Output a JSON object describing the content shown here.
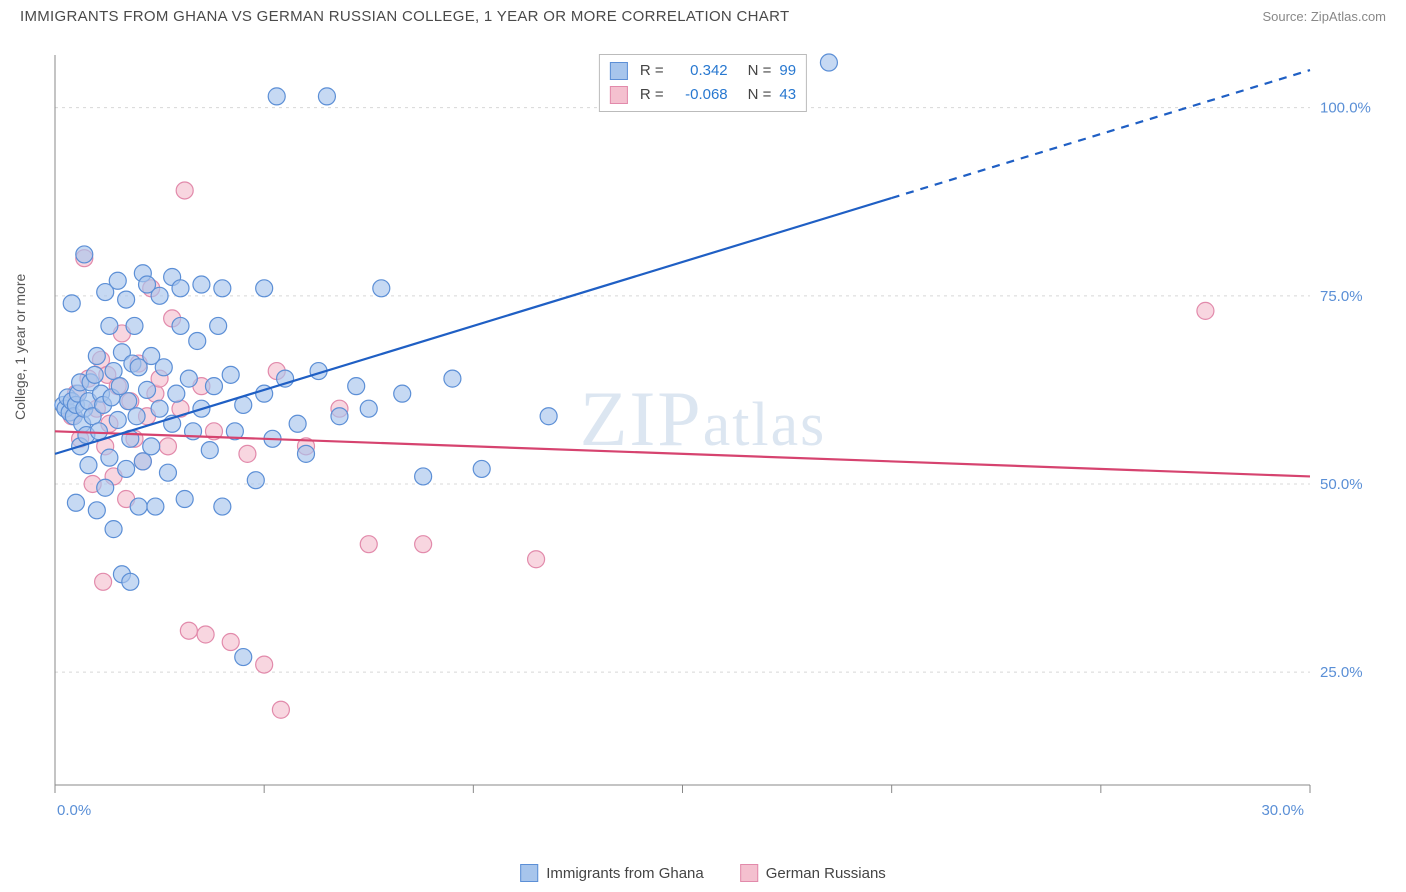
{
  "header": {
    "title": "IMMIGRANTS FROM GHANA VS GERMAN RUSSIAN COLLEGE, 1 YEAR OR MORE CORRELATION CHART",
    "source": "Source: ZipAtlas.com"
  },
  "watermark": "ZIPatlas",
  "axes": {
    "y_label": "College, 1 year or more",
    "x_min": 0,
    "x_max": 30,
    "y_min": 10,
    "y_max": 107,
    "x_ticks": [
      0,
      5,
      10,
      15,
      20,
      25,
      30
    ],
    "x_tick_labels": [
      "0.0%",
      "",
      "",
      "",
      "",
      "",
      "30.0%"
    ],
    "y_gridlines": [
      25,
      50,
      75,
      100
    ],
    "y_tick_labels": [
      "25.0%",
      "50.0%",
      "75.0%",
      "100.0%"
    ],
    "grid_color": "#d8d8d8",
    "axis_color": "#888888",
    "tick_label_color": "#5a8fd6",
    "tick_label_fontsize": 15
  },
  "series": {
    "ghana": {
      "name": "Immigrants from Ghana",
      "color_fill": "#a7c5ec",
      "color_stroke": "#5c8fd6",
      "marker_radius": 8.5,
      "marker_opacity": 0.65,
      "R": "0.342",
      "N": "99",
      "trend": {
        "x1": 0,
        "y1": 54,
        "x2_solid": 20,
        "y2_solid": 88,
        "x2_dash": 30,
        "y2_dash": 105,
        "stroke": "#1f5fc4",
        "width": 2.2
      },
      "points": [
        [
          0.2,
          60.5
        ],
        [
          0.25,
          60
        ],
        [
          0.3,
          61.5
        ],
        [
          0.35,
          59.5
        ],
        [
          0.4,
          61
        ],
        [
          0.4,
          74
        ],
        [
          0.45,
          59
        ],
        [
          0.5,
          60.5
        ],
        [
          0.5,
          47.5
        ],
        [
          0.55,
          62
        ],
        [
          0.6,
          63.5
        ],
        [
          0.6,
          55
        ],
        [
          0.65,
          58
        ],
        [
          0.7,
          60
        ],
        [
          0.7,
          80.5
        ],
        [
          0.75,
          56.5
        ],
        [
          0.8,
          61
        ],
        [
          0.8,
          52.5
        ],
        [
          0.85,
          63.5
        ],
        [
          0.9,
          59
        ],
        [
          0.95,
          64.5
        ],
        [
          1.0,
          46.5
        ],
        [
          1.0,
          67
        ],
        [
          1.05,
          57
        ],
        [
          1.1,
          62
        ],
        [
          1.15,
          60.5
        ],
        [
          1.2,
          75.5
        ],
        [
          1.2,
          49.5
        ],
        [
          1.3,
          71
        ],
        [
          1.3,
          53.5
        ],
        [
          1.35,
          61.5
        ],
        [
          1.4,
          44
        ],
        [
          1.4,
          65
        ],
        [
          1.5,
          58.5
        ],
        [
          1.5,
          77
        ],
        [
          1.55,
          63
        ],
        [
          1.6,
          38
        ],
        [
          1.6,
          67.5
        ],
        [
          1.7,
          52
        ],
        [
          1.7,
          74.5
        ],
        [
          1.75,
          61
        ],
        [
          1.8,
          37
        ],
        [
          1.8,
          56
        ],
        [
          1.85,
          66
        ],
        [
          1.9,
          71
        ],
        [
          1.95,
          59
        ],
        [
          2.0,
          47
        ],
        [
          2.0,
          65.5
        ],
        [
          2.1,
          78
        ],
        [
          2.1,
          53
        ],
        [
          2.2,
          62.5
        ],
        [
          2.2,
          76.5
        ],
        [
          2.3,
          55
        ],
        [
          2.3,
          67
        ],
        [
          2.4,
          47
        ],
        [
          2.5,
          75
        ],
        [
          2.5,
          60
        ],
        [
          2.6,
          65.5
        ],
        [
          2.7,
          51.5
        ],
        [
          2.8,
          77.5
        ],
        [
          2.8,
          58
        ],
        [
          2.9,
          62
        ],
        [
          3.0,
          71
        ],
        [
          3.0,
          76
        ],
        [
          3.1,
          48
        ],
        [
          3.2,
          64
        ],
        [
          3.3,
          57
        ],
        [
          3.4,
          69
        ],
        [
          3.5,
          60
        ],
        [
          3.5,
          76.5
        ],
        [
          3.7,
          54.5
        ],
        [
          3.8,
          63
        ],
        [
          3.9,
          71
        ],
        [
          4.0,
          76
        ],
        [
          4.0,
          47
        ],
        [
          4.2,
          64.5
        ],
        [
          4.3,
          57
        ],
        [
          4.5,
          60.5
        ],
        [
          4.5,
          27
        ],
        [
          4.8,
          50.5
        ],
        [
          5.0,
          62
        ],
        [
          5.0,
          76
        ],
        [
          5.2,
          56
        ],
        [
          5.3,
          101.5
        ],
        [
          5.5,
          64
        ],
        [
          5.8,
          58
        ],
        [
          6.0,
          54
        ],
        [
          6.3,
          65
        ],
        [
          6.5,
          101.5
        ],
        [
          6.8,
          59
        ],
        [
          7.2,
          63
        ],
        [
          7.5,
          60
        ],
        [
          7.8,
          76
        ],
        [
          8.3,
          62
        ],
        [
          8.8,
          51
        ],
        [
          9.5,
          64
        ],
        [
          10.2,
          52
        ],
        [
          11.8,
          59
        ],
        [
          18.5,
          106
        ]
      ]
    },
    "german": {
      "name": "German Russians",
      "color_fill": "#f4c0cf",
      "color_stroke": "#e28aab",
      "marker_radius": 8.5,
      "marker_opacity": 0.65,
      "R": "-0.068",
      "N": "43",
      "trend": {
        "x1": 0,
        "y1": 57,
        "x2": 30,
        "y2": 51,
        "stroke": "#d6436f",
        "width": 2.2
      },
      "points": [
        [
          0.4,
          59
        ],
        [
          0.5,
          62
        ],
        [
          0.6,
          56
        ],
        [
          0.7,
          80
        ],
        [
          0.8,
          64
        ],
        [
          0.9,
          50
        ],
        [
          1.0,
          60
        ],
        [
          1.1,
          66.5
        ],
        [
          1.15,
          37
        ],
        [
          1.2,
          55
        ],
        [
          1.25,
          64.5
        ],
        [
          1.3,
          58
        ],
        [
          1.4,
          51
        ],
        [
          1.5,
          63
        ],
        [
          1.6,
          70
        ],
        [
          1.7,
          48
        ],
        [
          1.8,
          61
        ],
        [
          1.9,
          56
        ],
        [
          2.0,
          66
        ],
        [
          2.1,
          53
        ],
        [
          2.2,
          59
        ],
        [
          2.3,
          76
        ],
        [
          2.4,
          62
        ],
        [
          2.5,
          64
        ],
        [
          2.7,
          55
        ],
        [
          2.8,
          72
        ],
        [
          3.0,
          60
        ],
        [
          3.1,
          89
        ],
        [
          3.2,
          30.5
        ],
        [
          3.5,
          63
        ],
        [
          3.6,
          30
        ],
        [
          3.8,
          57
        ],
        [
          4.2,
          29
        ],
        [
          4.6,
          54
        ],
        [
          5.0,
          26
        ],
        [
          5.3,
          65
        ],
        [
          5.4,
          20
        ],
        [
          6.0,
          55
        ],
        [
          6.8,
          60
        ],
        [
          7.5,
          42
        ],
        [
          8.8,
          42
        ],
        [
          11.5,
          40
        ],
        [
          27.5,
          73
        ]
      ]
    }
  },
  "legend_top": {
    "r_label": "R =",
    "n_label": "N ="
  },
  "legend_bottom": {
    "items": [
      "ghana",
      "german"
    ]
  }
}
